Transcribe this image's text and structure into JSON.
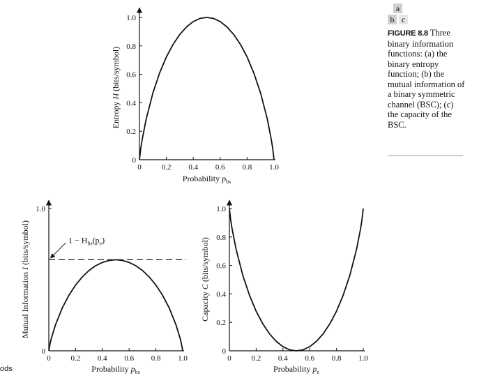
{
  "panel_key": {
    "a": "a",
    "b": "b",
    "c": "c"
  },
  "caption": {
    "label": "FIGURE 8.8",
    "text": "Three binary information functions: (a) the binary entropy function; (b) the mutual information of a binary symmetric channel (BSC); (c) the capacity of the BSC."
  },
  "stray_text": "ods",
  "chart_data": [
    {
      "panel": "a",
      "type": "line",
      "xlabel": "Probability",
      "xlabel_symbol": "p",
      "xlabel_subscript": "bs",
      "ylabel": "Entropy",
      "ylabel_symbol": "H",
      "ylabel_unit": "(bits/symbol)",
      "xlim": [
        0,
        1.0
      ],
      "ylim": [
        0,
        1.0
      ],
      "x_ticks": [
        "0",
        "0.2",
        "0.4",
        "0.6",
        "0.8",
        "1.0"
      ],
      "y_ticks": [
        "0",
        "0.2",
        "0.4",
        "0.6",
        "0.8",
        "1.0"
      ],
      "grid": false,
      "series": [
        {
          "x": [
            0,
            0.01,
            0.02,
            0.05,
            0.1,
            0.15,
            0.2,
            0.25,
            0.3,
            0.35,
            0.4,
            0.45,
            0.5,
            0.55,
            0.6,
            0.65,
            0.7,
            0.75,
            0.8,
            0.85,
            0.9,
            0.95,
            0.98,
            0.99,
            1.0
          ],
          "y": [
            0,
            0.081,
            0.141,
            0.286,
            0.469,
            0.61,
            0.722,
            0.811,
            0.881,
            0.934,
            0.971,
            0.993,
            1.0,
            0.993,
            0.971,
            0.934,
            0.881,
            0.811,
            0.722,
            0.61,
            0.469,
            0.286,
            0.141,
            0.081,
            0
          ]
        }
      ]
    },
    {
      "panel": "b",
      "type": "line",
      "xlabel": "Probability",
      "xlabel_symbol": "p",
      "xlabel_subscript": "bs",
      "ylabel": "Mutual Information",
      "ylabel_symbol": "I",
      "ylabel_unit": "(bits/symbol)",
      "xlim": [
        0,
        1.0
      ],
      "ylim": [
        0,
        1.0
      ],
      "x_ticks": [
        "0",
        "0.2",
        "0.4",
        "0.6",
        "0.8",
        "1.0"
      ],
      "y_ticks": [
        "0",
        "1.0"
      ],
      "grid": false,
      "reference_line": {
        "y": 0.64,
        "style": "dashed",
        "label_pre": "1 − H",
        "label_sub": "bs",
        "label_post": "(p",
        "label_sub2": "e",
        "label_end": ")"
      },
      "series": [
        {
          "x": [
            0,
            0.01,
            0.02,
            0.05,
            0.1,
            0.15,
            0.2,
            0.25,
            0.3,
            0.35,
            0.4,
            0.45,
            0.5,
            0.55,
            0.6,
            0.65,
            0.7,
            0.75,
            0.8,
            0.85,
            0.9,
            0.95,
            0.98,
            0.99,
            1.0
          ],
          "y": [
            0,
            0.052,
            0.09,
            0.183,
            0.3,
            0.39,
            0.462,
            0.519,
            0.564,
            0.598,
            0.621,
            0.635,
            0.64,
            0.635,
            0.621,
            0.598,
            0.564,
            0.519,
            0.462,
            0.39,
            0.3,
            0.183,
            0.09,
            0.052,
            0
          ]
        }
      ]
    },
    {
      "panel": "c",
      "type": "line",
      "xlabel": "Probability",
      "xlabel_symbol": "p",
      "xlabel_subscript": "e",
      "ylabel": "Capacity",
      "ylabel_symbol": "C",
      "ylabel_unit": "(bits/symbol)",
      "xlim": [
        0,
        1.0
      ],
      "ylim": [
        0,
        1.0
      ],
      "x_ticks": [
        "0",
        "0.2",
        "0.4",
        "0.6",
        "0.8",
        "1.0"
      ],
      "y_ticks": [
        "0",
        "0.2",
        "0.4",
        "0.6",
        "0.8",
        "1.0"
      ],
      "grid": false,
      "series": [
        {
          "x": [
            0,
            0.01,
            0.02,
            0.05,
            0.1,
            0.15,
            0.2,
            0.25,
            0.3,
            0.35,
            0.4,
            0.45,
            0.5,
            0.55,
            0.6,
            0.65,
            0.7,
            0.75,
            0.8,
            0.85,
            0.9,
            0.95,
            0.98,
            0.99,
            1.0
          ],
          "y": [
            1.0,
            0.919,
            0.859,
            0.714,
            0.531,
            0.39,
            0.278,
            0.189,
            0.119,
            0.066,
            0.029,
            0.007,
            0,
            0.007,
            0.029,
            0.066,
            0.119,
            0.189,
            0.278,
            0.39,
            0.531,
            0.714,
            0.859,
            0.919,
            1.0
          ]
        }
      ]
    }
  ]
}
